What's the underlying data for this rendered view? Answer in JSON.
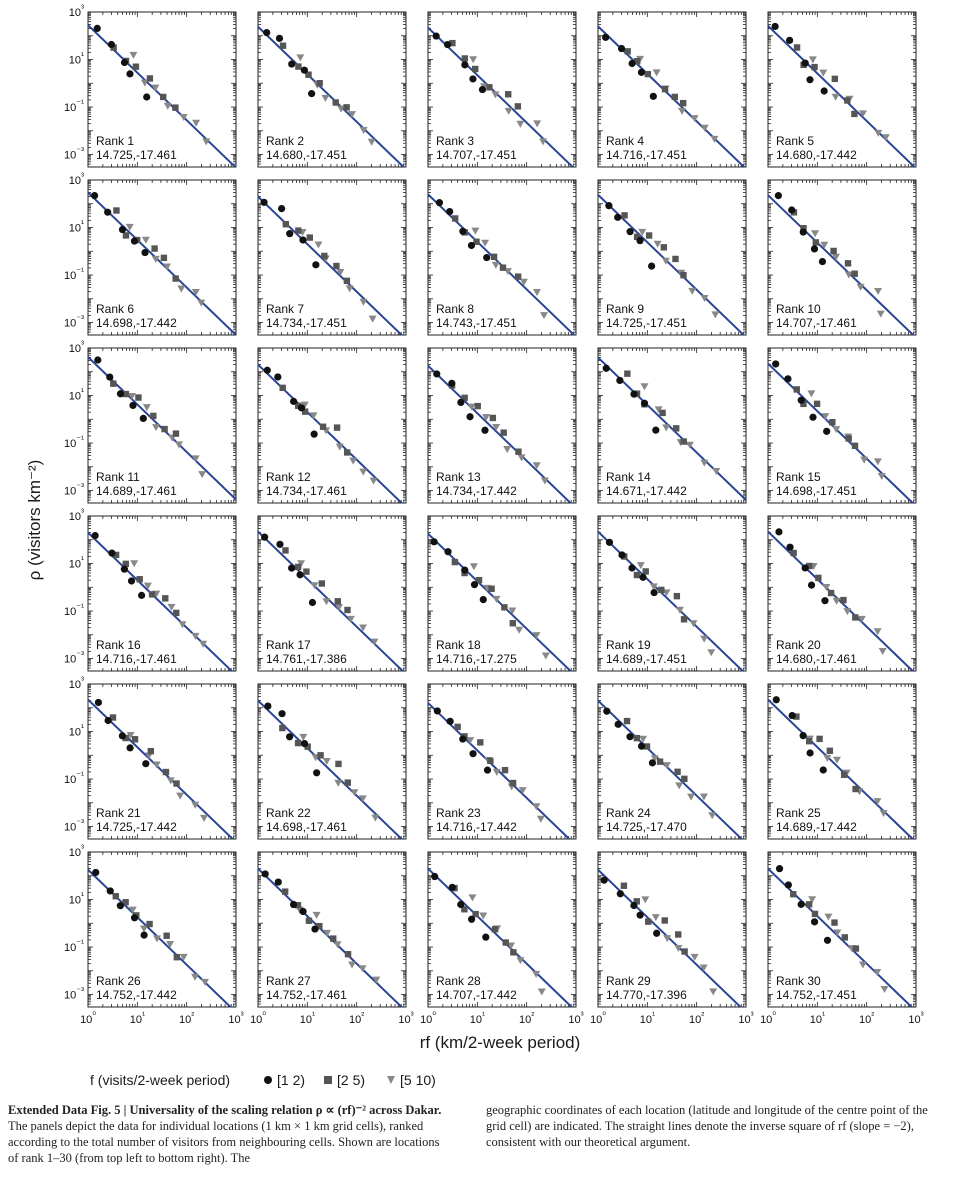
{
  "chart_data": {
    "type": "scatter",
    "ylabel": "ρ (visitors km⁻²)",
    "xlabel": "rf  (km/2-week period)",
    "x_scale": "log",
    "y_scale": "log",
    "xlim": [
      1,
      1000
    ],
    "ylim": [
      0.0003,
      1000
    ],
    "x_ticks": [
      "10⁰",
      "10¹",
      "10²",
      "10³"
    ],
    "y_ticks": [
      "10³",
      "10¹",
      "10⁻¹",
      "10⁻³"
    ],
    "fit_line": {
      "slope": -2
    },
    "legend": {
      "title": "f (visits/2-week period)",
      "series": [
        {
          "name": "[1 2)",
          "marker": "circle",
          "color": "#111111"
        },
        {
          "name": "[2 5)",
          "marker": "square",
          "color": "#555555"
        },
        {
          "name": "[5 10)",
          "marker": "triangle",
          "color": "#888888"
        }
      ]
    },
    "line_color": "#2a4596",
    "panels": [
      {
        "rank": "Rank 1",
        "coords": "14.725,-17.461",
        "C": 280
      },
      {
        "rank": "Rank 2",
        "coords": "14.680,-17.451",
        "C": 240
      },
      {
        "rank": "Rank 3",
        "coords": "14.707,-17.451",
        "C": 220
      },
      {
        "rank": "Rank 4",
        "coords": "14.716,-17.451",
        "C": 250
      },
      {
        "rank": "Rank 5",
        "coords": "14.680,-17.442",
        "C": 260
      },
      {
        "rank": "Rank 6",
        "coords": "14.698,-17.442",
        "C": 300
      },
      {
        "rank": "Rank 7",
        "coords": "14.734,-17.451",
        "C": 200
      },
      {
        "rank": "Rank 8",
        "coords": "14.743,-17.451",
        "C": 250
      },
      {
        "rank": "Rank 9",
        "coords": "14.725,-17.451",
        "C": 240
      },
      {
        "rank": "Rank 10",
        "coords": "14.707,-17.461",
        "C": 230
      },
      {
        "rank": "Rank 11",
        "coords": "14.689,-17.461",
        "C": 420
      },
      {
        "rank": "Rank 12",
        "coords": "14.734,-17.461",
        "C": 200
      },
      {
        "rank": "Rank 13",
        "coords": "14.734,-17.442",
        "C": 180
      },
      {
        "rank": "Rank 14",
        "coords": "14.671,-17.442",
        "C": 400
      },
      {
        "rank": "Rank 15",
        "coords": "14.698,-17.451",
        "C": 220
      },
      {
        "rank": "Rank 16",
        "coords": "14.716,-17.461",
        "C": 200
      },
      {
        "rank": "Rank 17",
        "coords": "14.761,-17.386",
        "C": 220
      },
      {
        "rank": "Rank 18",
        "coords": "14.716,-17.275",
        "C": 180
      },
      {
        "rank": "Rank 19",
        "coords": "14.689,-17.451",
        "C": 220
      },
      {
        "rank": "Rank 20",
        "coords": "14.680,-17.461",
        "C": 220
      },
      {
        "rank": "Rank 21",
        "coords": "14.725,-17.442",
        "C": 220
      },
      {
        "rank": "Rank 22",
        "coords": "14.698,-17.461",
        "C": 200
      },
      {
        "rank": "Rank 23",
        "coords": "14.716,-17.442",
        "C": 160
      },
      {
        "rank": "Rank 24",
        "coords": "14.725,-17.470",
        "C": 200
      },
      {
        "rank": "Rank 25",
        "coords": "14.689,-17.442",
        "C": 220
      },
      {
        "rank": "Rank 26",
        "coords": "14.752,-17.442",
        "C": 180
      },
      {
        "rank": "Rank 27",
        "coords": "14.752,-17.461",
        "C": 200
      },
      {
        "rank": "Rank 28",
        "coords": "14.707,-17.442",
        "C": 200
      },
      {
        "rank": "Rank 29",
        "coords": "14.770,-17.396",
        "C": 180
      },
      {
        "rank": "Rank 30",
        "coords": "14.752,-17.451",
        "C": 200
      }
    ],
    "typical_points": {
      "circle": [
        [
          1.5,
          150
        ],
        [
          2.8,
          45
        ],
        [
          5,
          12
        ],
        [
          8,
          2.5
        ],
        [
          14,
          0.4
        ]
      ],
      "square": [
        [
          3.5,
          30
        ],
        [
          6,
          7
        ],
        [
          10,
          3
        ],
        [
          20,
          1.0
        ],
        [
          38,
          0.3
        ],
        [
          60,
          0.08
        ]
      ],
      "triangle": [
        [
          8,
          8
        ],
        [
          15,
          1.5
        ],
        [
          25,
          0.4
        ],
        [
          45,
          0.12
        ],
        [
          80,
          0.04
        ],
        [
          150,
          0.012
        ],
        [
          220,
          0.003
        ]
      ]
    }
  },
  "caption": {
    "label": "Extended Data Fig. 5 | Universality of the scaling relation ρ ∝ (rf)⁻² across Dakar.",
    "text_left": "The panels depict the data for individual locations (1 km × 1 km grid cells), ranked according to the total number of visitors from neighbouring cells. Shown are locations of rank 1–30 (from top left to bottom right). The",
    "text_right": "geographic coordinates of each location (latitude and longitude of the centre point of the grid cell) are indicated. The straight lines denote the inverse square of rf (slope = −2), consistent with our theoretical argument."
  }
}
